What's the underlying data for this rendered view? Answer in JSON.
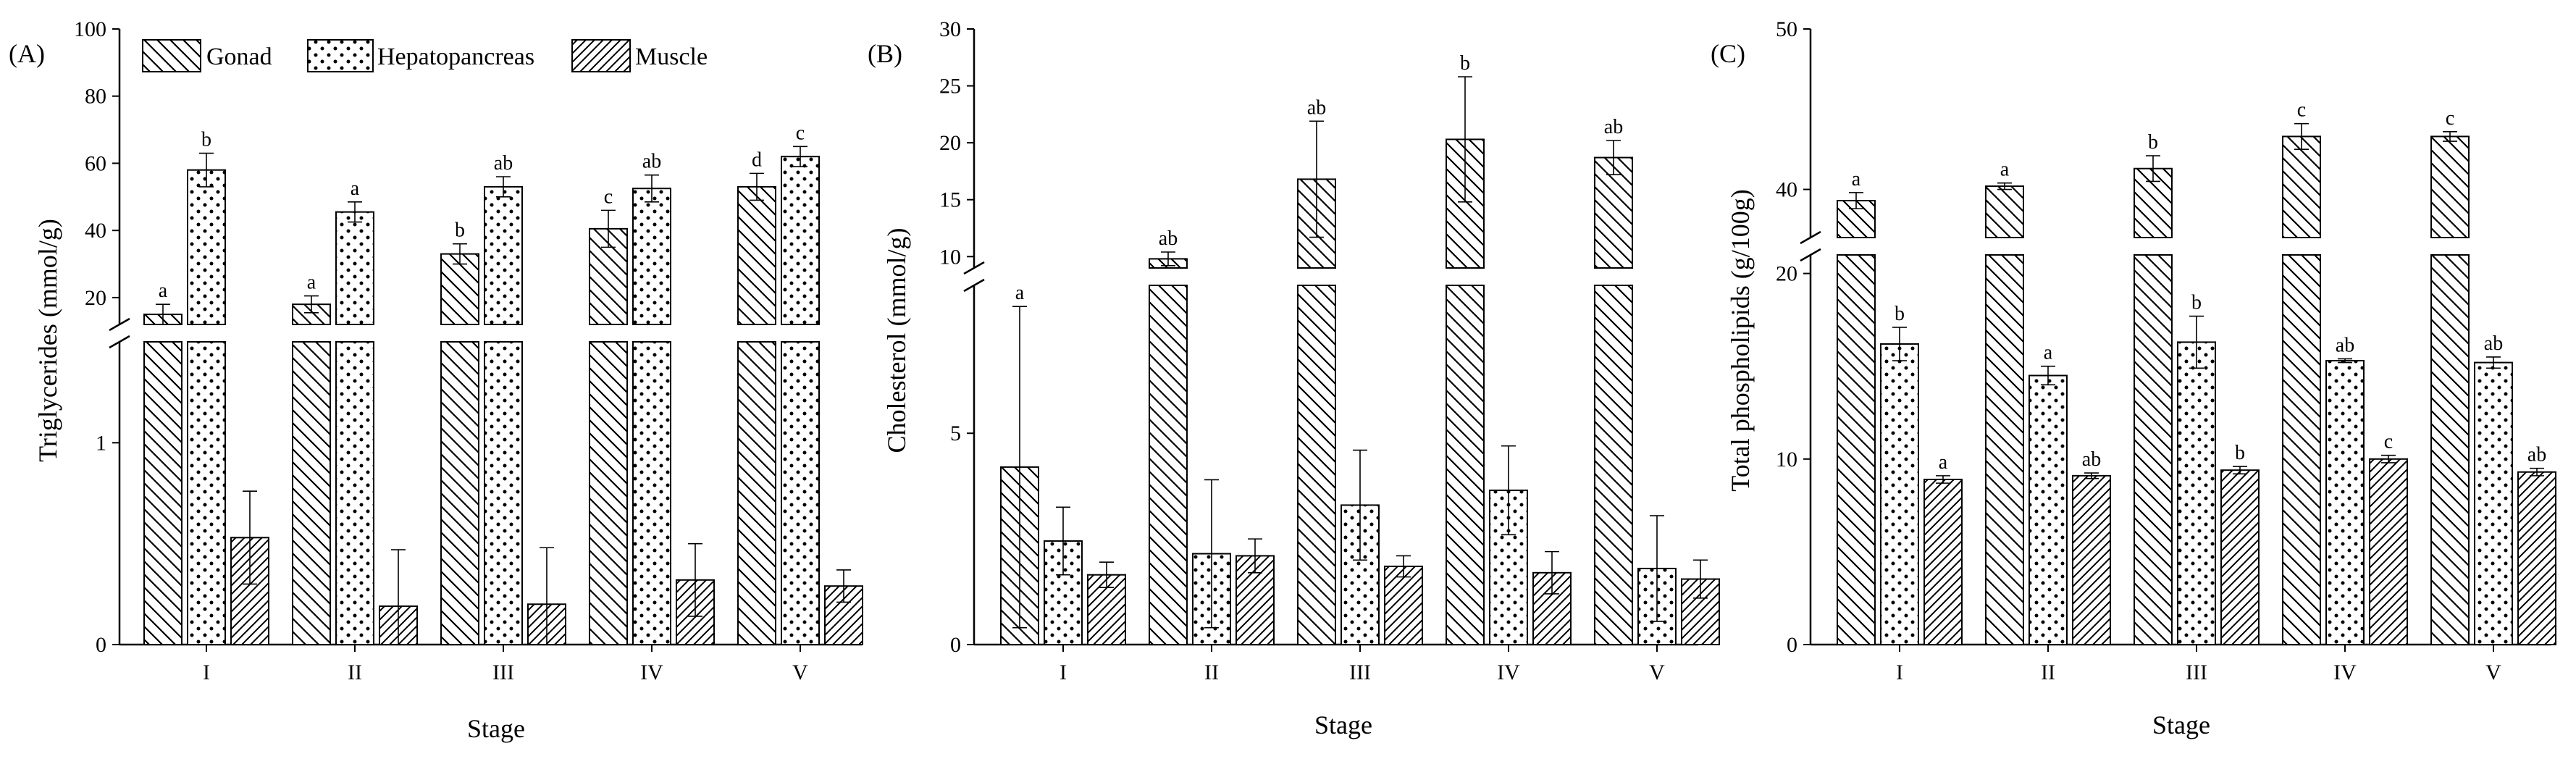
{
  "chart_data": [
    {
      "panel": "(A)",
      "type": "bar",
      "ylabel": "Triglycerides (mmol/g)",
      "xlabel": "Stage",
      "categories": [
        "I",
        "II",
        "III",
        "IV",
        "V"
      ],
      "axis_break": true,
      "lower_ylim": [
        0,
        1.5
      ],
      "lower_ticks": [
        "0",
        "1"
      ],
      "upper_ylim": [
        12,
        100
      ],
      "upper_ticks": [
        "20",
        "40",
        "60",
        "80",
        "100"
      ],
      "series": [
        {
          "name": "Gonad",
          "pattern": "back-diagonal",
          "values": [
            15,
            18,
            33,
            40.5,
            53
          ],
          "errors": [
            3,
            2.5,
            3,
            5.5,
            4
          ],
          "letters": [
            "a",
            "a",
            "b",
            "c",
            "d"
          ]
        },
        {
          "name": "Hepatopancreas",
          "pattern": "dots",
          "values": [
            58,
            45.5,
            53,
            52.5,
            62
          ],
          "errors": [
            5,
            3,
            3,
            4,
            3
          ],
          "letters": [
            "b",
            "a",
            "ab",
            "ab",
            "c"
          ]
        },
        {
          "name": "Muscle",
          "pattern": "forward-diagonal",
          "values": [
            0.53,
            0.19,
            0.2,
            0.32,
            0.29
          ],
          "errors": [
            0.23,
            0.28,
            0.28,
            0.18,
            0.08
          ],
          "letters": [
            "",
            "",
            "",
            "",
            ""
          ]
        }
      ]
    },
    {
      "panel": "(B)",
      "type": "bar",
      "ylabel": "Cholesterol (mmol/g)",
      "xlabel": "Stage",
      "categories": [
        "I",
        "II",
        "III",
        "IV",
        "V"
      ],
      "axis_break": true,
      "lower_ylim": [
        0,
        8.5
      ],
      "lower_ticks": [
        "0",
        "5"
      ],
      "upper_ylim": [
        9,
        30
      ],
      "upper_ticks": [
        "10",
        "15",
        "20",
        "25",
        "30"
      ],
      "series": [
        {
          "name": "Gonad",
          "pattern": "back-diagonal",
          "values": [
            4.2,
            9.8,
            16.8,
            20.3,
            18.7
          ],
          "errors": [
            3.8,
            0.6,
            5.1,
            5.5,
            1.5
          ],
          "letters": [
            "a",
            "ab",
            "ab",
            "b",
            "ab"
          ]
        },
        {
          "name": "Hepatopancreas",
          "pattern": "dots",
          "values": [
            2.45,
            2.15,
            3.3,
            3.65,
            1.8
          ],
          "errors": [
            0.8,
            1.75,
            1.3,
            1.05,
            1.25
          ],
          "letters": [
            "",
            "",
            "",
            "",
            ""
          ]
        },
        {
          "name": "Muscle",
          "pattern": "forward-diagonal",
          "values": [
            1.65,
            2.1,
            1.85,
            1.7,
            1.55
          ],
          "errors": [
            0.3,
            0.4,
            0.25,
            0.5,
            0.45
          ],
          "letters": [
            "",
            "",
            "",
            "",
            ""
          ]
        }
      ]
    },
    {
      "panel": "(C)",
      "type": "bar",
      "ylabel": "Total phospholipids (g/100g)",
      "xlabel": "Stage",
      "categories": [
        "I",
        "II",
        "III",
        "IV",
        "V"
      ],
      "axis_break": true,
      "lower_ylim": [
        0,
        21
      ],
      "lower_ticks": [
        "0",
        "10",
        "20"
      ],
      "upper_ylim": [
        37,
        50
      ],
      "upper_ticks": [
        "40",
        "50"
      ],
      "series": [
        {
          "name": "Gonad",
          "pattern": "back-diagonal",
          "values": [
            39.3,
            40.2,
            41.3,
            43.3,
            43.3
          ],
          "errors": [
            0.5,
            0.2,
            0.8,
            0.8,
            0.3
          ],
          "letters": [
            "a",
            "a",
            "b",
            "c",
            "c"
          ]
        },
        {
          "name": "Hepatopancreas",
          "pattern": "dots",
          "values": [
            16.2,
            14.5,
            16.3,
            15.3,
            15.2
          ],
          "errors": [
            0.9,
            0.5,
            1.4,
            0.1,
            0.3
          ],
          "letters": [
            "b",
            "a",
            "b",
            "ab",
            "ab"
          ]
        },
        {
          "name": "Muscle",
          "pattern": "forward-diagonal",
          "values": [
            8.9,
            9.1,
            9.4,
            10,
            9.3
          ],
          "errors": [
            0.2,
            0.15,
            0.2,
            0.2,
            0.2
          ],
          "letters": [
            "a",
            "ab",
            "b",
            "c",
            "ab"
          ]
        }
      ]
    }
  ],
  "legend": {
    "placement": "top-left of panel (A)",
    "items": [
      {
        "label": "Gonad",
        "pattern": "back-diagonal"
      },
      {
        "label": "Hepatopancreas",
        "pattern": "dots"
      },
      {
        "label": "Muscle",
        "pattern": "forward-diagonal"
      }
    ]
  }
}
